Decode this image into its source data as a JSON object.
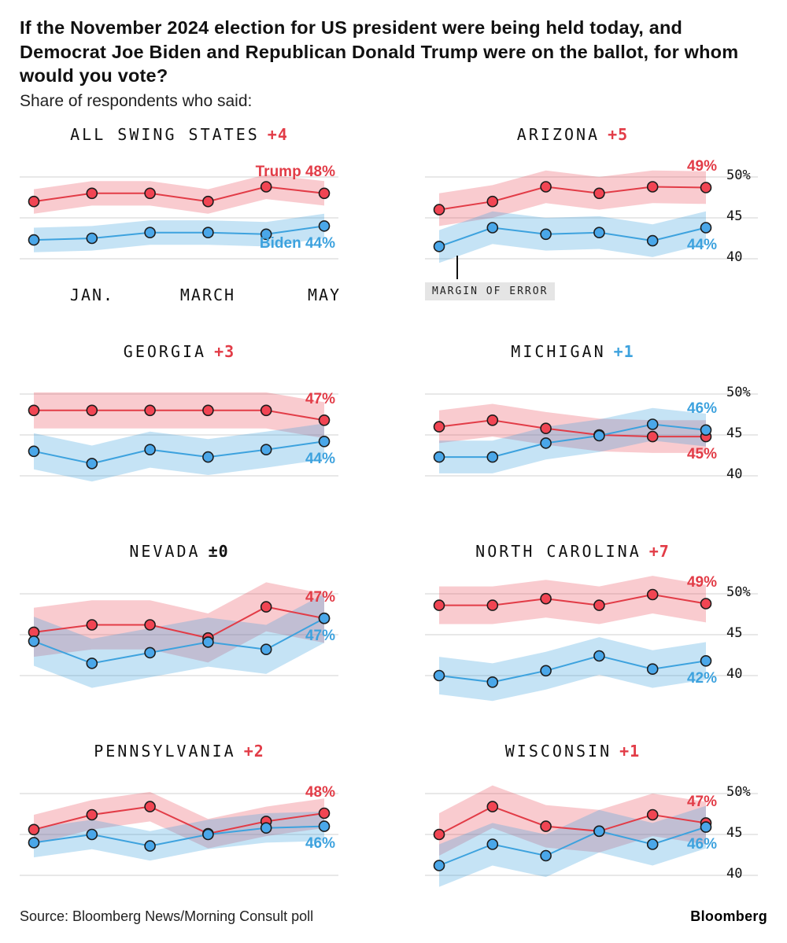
{
  "header": {
    "title": "If the November 2024 election for US president were being held today, and Democrat Joe Biden and Republican Donald Trump were on the ballot, for whom would you vote?",
    "subtitle": "Share of respondents who said:"
  },
  "axis": {
    "x_ticks": [
      "JAN.",
      "MARCH",
      "MAY"
    ],
    "y_ticks": [
      "50%",
      "45",
      "40"
    ],
    "y_values": [
      50,
      45,
      40
    ]
  },
  "margin_note": "MARGIN OF ERROR",
  "colors": {
    "trump": "#e23c47",
    "biden": "#3da2de",
    "trump_dot": "#f14553",
    "biden_dot": "#4aa7e9",
    "trump_band": "rgba(233,62,77,0.27)",
    "biden_band": "rgba(63,163,222,0.30)",
    "grid": "#d9d9d9"
  },
  "chart_data": [
    {
      "type": "line",
      "title": "ALL SWING STATES",
      "lead": "+4",
      "lead_color": "red",
      "leader": "trump",
      "trump_label": "Trump 48%",
      "biden_label": "Biden 44%",
      "moe": 1.5,
      "ylim": [
        38,
        52.5
      ],
      "trump": [
        47,
        48,
        48,
        47,
        48.8,
        48
      ],
      "biden": [
        42.3,
        42.5,
        43.2,
        43.2,
        43,
        44
      ]
    },
    {
      "type": "line",
      "title": "ARIZONA",
      "lead": "+5",
      "lead_color": "red",
      "leader": "trump",
      "trump_label": "49%",
      "biden_label": "44%",
      "moe": 2,
      "ylim": [
        38,
        52.5
      ],
      "trump": [
        46,
        47,
        48.8,
        48,
        48.8,
        48.7
      ],
      "biden": [
        41.5,
        43.8,
        43,
        43.2,
        42.2,
        43.8
      ]
    },
    {
      "type": "line",
      "title": "GEORGIA",
      "lead": "+3",
      "lead_color": "red",
      "leader": "trump",
      "trump_label": "47%",
      "biden_label": "44%",
      "moe": 2.2,
      "ylim": [
        38,
        52.5
      ],
      "trump": [
        48,
        48,
        48,
        48,
        48,
        46.8
      ],
      "biden": [
        43,
        41.5,
        43.2,
        42.3,
        43.2,
        44.2
      ]
    },
    {
      "type": "line",
      "title": "MICHIGAN",
      "lead": "+1",
      "lead_color": "blue",
      "leader": "biden",
      "trump_label": "45%",
      "biden_label": "46%",
      "moe": 2,
      "ylim": [
        38,
        52.5
      ],
      "trump": [
        46,
        46.8,
        45.8,
        45,
        44.8,
        44.8
      ],
      "biden": [
        42.3,
        42.3,
        44,
        44.9,
        46.3,
        45.6
      ]
    },
    {
      "type": "line",
      "title": "NEVADA",
      "lead": "±0",
      "lead_color": "neutral",
      "leader": "tie",
      "trump_label": "47%",
      "biden_label": "47%",
      "moe": 3,
      "ylim": [
        38,
        52.5
      ],
      "trump": [
        45.3,
        46.2,
        46.2,
        44.6,
        48.4,
        47
      ],
      "biden": [
        44.2,
        41.5,
        42.8,
        44.1,
        43.2,
        47
      ]
    },
    {
      "type": "line",
      "title": "NORTH CAROLINA",
      "lead": "+7",
      "lead_color": "red",
      "leader": "trump",
      "trump_label": "49%",
      "biden_label": "42%",
      "moe": 2.3,
      "ylim": [
        38,
        52.5
      ],
      "trump": [
        48.6,
        48.6,
        49.4,
        48.6,
        49.9,
        48.8
      ],
      "biden": [
        40,
        39.2,
        40.6,
        42.4,
        40.8,
        41.8
      ]
    },
    {
      "type": "line",
      "title": "PENNSYLVANIA",
      "lead": "+2",
      "lead_color": "red",
      "leader": "trump",
      "trump_label": "48%",
      "biden_label": "46%",
      "moe": 1.8,
      "ylim": [
        38,
        52.5
      ],
      "trump": [
        45.6,
        47.4,
        48.4,
        45.1,
        46.6,
        47.6
      ],
      "biden": [
        44,
        45,
        43.6,
        45,
        45.8,
        46
      ]
    },
    {
      "type": "line",
      "title": "WISCONSIN",
      "lead": "+1",
      "lead_color": "red",
      "leader": "trump",
      "trump_label": "47%",
      "biden_label": "46%",
      "moe": 2.6,
      "ylim": [
        38,
        52.5
      ],
      "trump": [
        45,
        48.4,
        46,
        45.4,
        47.4,
        46.4
      ],
      "biden": [
        41.2,
        43.8,
        42.4,
        45.4,
        43.8,
        45.9
      ]
    }
  ],
  "footer": {
    "source": "Source: Bloomberg News/Morning Consult poll",
    "brand": "Bloomberg"
  }
}
